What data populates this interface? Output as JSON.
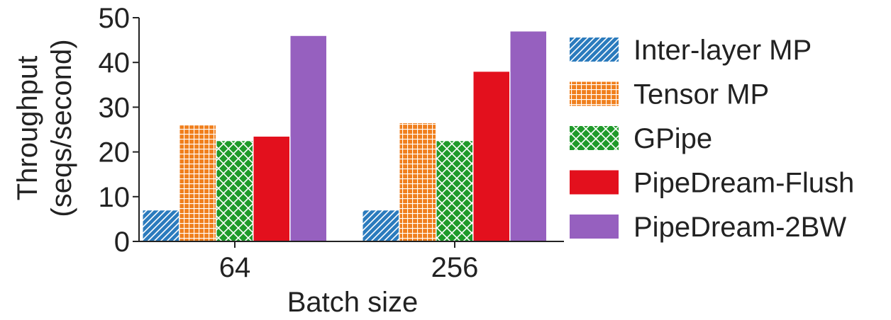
{
  "chart_data": {
    "type": "bar",
    "categories": [
      "64",
      "256"
    ],
    "series": [
      {
        "name": "Inter-layer MP",
        "values": [
          7,
          7
        ],
        "color": "#2b7bbd",
        "pattern": "diagonal-hatch"
      },
      {
        "name": "Tensor MP",
        "values": [
          26,
          26.5
        ],
        "color": "#f07f1c",
        "pattern": "grid"
      },
      {
        "name": "GPipe",
        "values": [
          22.5,
          22.5
        ],
        "color": "#1f9a2a",
        "pattern": "crosshatch"
      },
      {
        "name": "PipeDream-Flush",
        "values": [
          23.5,
          38
        ],
        "color": "#e3101d",
        "pattern": "solid"
      },
      {
        "name": "PipeDream-2BW",
        "values": [
          46,
          47
        ],
        "color": "#9660bf",
        "pattern": "solid"
      }
    ],
    "xlabel": "Batch size",
    "ylabel": [
      "Throughput",
      "(seqs/second)"
    ],
    "ylim": [
      0,
      50
    ],
    "yticks": [
      "0",
      "10",
      "20",
      "30",
      "40",
      "50"
    ],
    "grid": false,
    "legend_position": "right"
  }
}
